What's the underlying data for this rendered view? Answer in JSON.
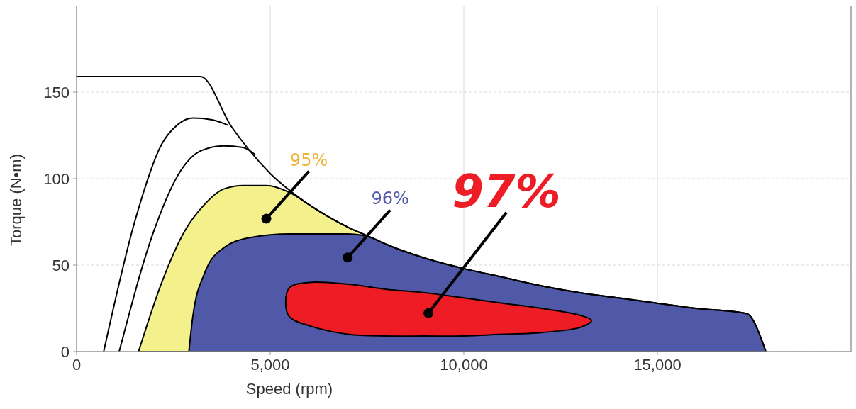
{
  "chart_data": {
    "type": "area",
    "xlabel": "Speed (rpm)",
    "ylabel": "Torque (N•m)",
    "xlim": [
      0,
      20000
    ],
    "ylim": [
      0,
      200
    ],
    "xticks": [
      0,
      {
        "value": 5000,
        "label": "5,000"
      },
      {
        "value": 10000,
        "label": "10,000"
      },
      {
        "value": 15000,
        "label": "15,000"
      }
    ],
    "yticks": [
      0,
      50,
      100,
      150
    ],
    "grid": true,
    "series": [
      {
        "name": "95%",
        "color": "#f4f18c",
        "x": [
          1600,
          2200,
          2800,
          3300,
          3800,
          4300,
          4900,
          5500,
          6000,
          6500,
          7000,
          7600
        ],
        "values": [
          0,
          40,
          70,
          85,
          94,
          96,
          96,
          92,
          85,
          78,
          72,
          66
        ]
      },
      {
        "name": "96%",
        "color": "#5059a8",
        "x": [
          2900,
          3000,
          3300,
          3800,
          4500,
          5500,
          7000,
          7600,
          8000,
          9000,
          10000,
          11000,
          12000,
          13000,
          14000,
          15000,
          16000,
          17300,
          17800
        ],
        "values": [
          0,
          20,
          45,
          60,
          66,
          68,
          68,
          66,
          62,
          54,
          48,
          43,
          38,
          34,
          31,
          28,
          25,
          22,
          0
        ]
      },
      {
        "name": "97%",
        "color": "#ee1c25",
        "x": [
          5400,
          5500,
          6000,
          7000,
          8000,
          9000,
          10000,
          11000,
          12000,
          13000,
          13300,
          13000,
          12000,
          11000,
          10000,
          9000,
          8000,
          7000,
          6000,
          5500
        ],
        "values": [
          28,
          37,
          40,
          39,
          36,
          34,
          31,
          28,
          25,
          21,
          18,
          14,
          11,
          10,
          9,
          9,
          9,
          10,
          15,
          20
        ]
      },
      {
        "type": "line",
        "color": "#000000",
        "x": [
          0,
          3200,
          4000,
          5000,
          6000,
          7000,
          7500,
          8000,
          9000,
          10000,
          11000,
          12000,
          13000,
          14000,
          15000,
          16000,
          17300,
          17800
        ],
        "values": [
          159,
          159,
          130,
          103,
          85,
          72,
          67,
          62,
          54,
          48,
          43,
          38,
          34,
          31,
          28,
          25,
          22,
          0
        ]
      },
      {
        "type": "line",
        "color": "#000000",
        "x": [
          700,
          1500,
          2200,
          2600,
          3000,
          3500,
          3900
        ],
        "values": [
          0,
          75,
          120,
          131,
          135,
          134,
          131
        ]
      },
      {
        "type": "line",
        "color": "#000000",
        "x": [
          1100,
          2000,
          2700,
          3200,
          3800,
          4300,
          4600
        ],
        "values": [
          0,
          70,
          105,
          116,
          119,
          118,
          114
        ]
      }
    ]
  }
}
